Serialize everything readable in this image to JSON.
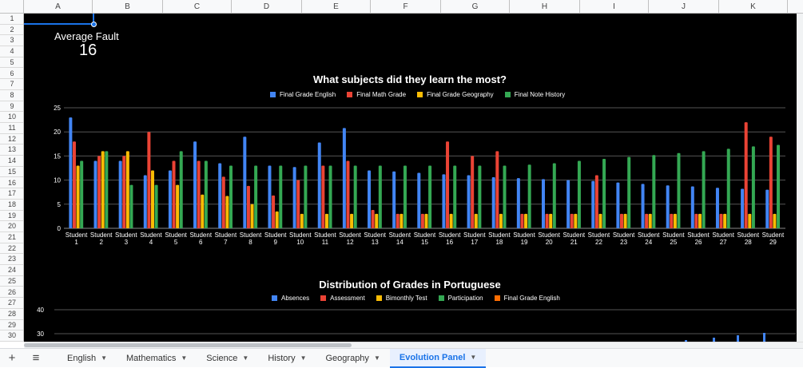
{
  "columns": [
    "A",
    "B",
    "C",
    "D",
    "E",
    "F",
    "G",
    "H",
    "I",
    "J",
    "K"
  ],
  "rows": [
    "1",
    "2",
    "3",
    "4",
    "5",
    "6",
    "7",
    "8",
    "9",
    "10",
    "11",
    "12",
    "13",
    "14",
    "15",
    "16",
    "17",
    "18",
    "19",
    "20",
    "21",
    "22",
    "23",
    "24",
    "25",
    "26",
    "27",
    "28",
    "29",
    "30"
  ],
  "kpi": {
    "label": "Average Fault",
    "value": "16"
  },
  "colors": {
    "english": "#4285f4",
    "math": "#ea4335",
    "geography": "#fbbc04",
    "history": "#34a853",
    "final_english2": "#ff6d01",
    "grid": "#555555",
    "background": "#000000"
  },
  "chart_data": [
    {
      "type": "bar",
      "title": "What subjects did they learn the most?",
      "categories": [
        "Student 1",
        "Student 2",
        "Student 3",
        "Student 4",
        "Student 5",
        "Student 6",
        "Student 7",
        "Student 8",
        "Student 9",
        "Student 10",
        "Student 11",
        "Student 12",
        "Student 13",
        "Student 14",
        "Student 15",
        "Student 16",
        "Student 17",
        "Student 18",
        "Student 19",
        "Student 20",
        "Student 21",
        "Student 22",
        "Student 23",
        "Student 24",
        "Student 25",
        "Student 26",
        "Student 27",
        "Student 28",
        "Student 29"
      ],
      "series": [
        {
          "name": "Final Grade English",
          "color": "#4285f4",
          "values": [
            23,
            14,
            14,
            11,
            12,
            18,
            13.5,
            19,
            13,
            12.7,
            17.8,
            20.8,
            12,
            11.8,
            11.5,
            11.2,
            11,
            10.6,
            10.4,
            10.2,
            10,
            9.8,
            9.5,
            9.2,
            8.9,
            8.7,
            8.4,
            8.2,
            8
          ]
        },
        {
          "name": "Final Math Grade",
          "color": "#ea4335",
          "values": [
            18,
            15,
            15,
            20,
            14,
            14,
            10.7,
            8.8,
            6.8,
            10,
            13,
            14,
            3.8,
            3,
            3,
            18,
            15,
            16,
            3,
            3,
            3,
            11,
            3,
            3,
            3,
            3,
            3,
            22,
            19
          ]
        },
        {
          "name": "Final Grade Geography",
          "color": "#fbbc04",
          "values": [
            13,
            16,
            16,
            12,
            9,
            7,
            6.7,
            5,
            3.5,
            3,
            3,
            3,
            3,
            3,
            3,
            3,
            3,
            3,
            3,
            3,
            3,
            3,
            3,
            3,
            3,
            3,
            3,
            3,
            3
          ]
        },
        {
          "name": "Final Note History",
          "color": "#34a853",
          "values": [
            14,
            16,
            9,
            9,
            16,
            14,
            13,
            13,
            13,
            13,
            13,
            13,
            13,
            13,
            13,
            13,
            13,
            13,
            13.2,
            13.5,
            14,
            14.4,
            14.8,
            15.2,
            15.6,
            16,
            16.5,
            17,
            17.3
          ]
        }
      ],
      "ylim": [
        0,
        25
      ],
      "yticks": [
        "0",
        "5",
        "10",
        "15",
        "20",
        "25"
      ],
      "grid": true,
      "legend": "top"
    },
    {
      "type": "bar",
      "title": "Distribution of Grades in Portuguese",
      "series": [
        {
          "name": "Absences",
          "color": "#4285f4"
        },
        {
          "name": "Assessment",
          "color": "#ea4335"
        },
        {
          "name": "Bimonthly Test",
          "color": "#fbbc04"
        },
        {
          "name": "Participation",
          "color": "#34a853"
        },
        {
          "name": "Final Grade English",
          "color": "#ff6d01"
        }
      ],
      "visible_yticks": [
        "40",
        "30"
      ],
      "grid": true,
      "legend": "top"
    }
  ],
  "tabs": [
    {
      "label": "English",
      "active": false
    },
    {
      "label": "Mathematics",
      "active": false
    },
    {
      "label": "Science",
      "active": false
    },
    {
      "label": "History",
      "active": false
    },
    {
      "label": "Geography",
      "active": false
    },
    {
      "label": "Evolution Panel",
      "active": true
    }
  ],
  "icons": {
    "add": "plus-icon",
    "menu": "hamburger-icon",
    "caret": "caret-down-icon"
  }
}
